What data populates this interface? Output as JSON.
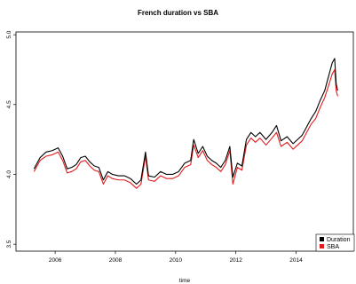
{
  "chart_data": {
    "type": "line",
    "title": "French duration vs SBA",
    "xlabel": "time",
    "ylabel": "",
    "xlim": [
      2004.7,
      2015.9
    ],
    "ylim": [
      3.45,
      5.02
    ],
    "x_ticks": [
      2006,
      2008,
      2010,
      2012,
      2014
    ],
    "y_ticks": [
      3.5,
      4.0,
      4.5,
      5.0
    ],
    "grid": false,
    "legend_position": "bottom-right",
    "series": [
      {
        "name": "Duration",
        "color": "#000000",
        "points": [
          [
            2005.3,
            4.04
          ],
          [
            2005.5,
            4.12
          ],
          [
            2005.7,
            4.16
          ],
          [
            2005.9,
            4.17
          ],
          [
            2006.1,
            4.19
          ],
          [
            2006.25,
            4.13
          ],
          [
            2006.4,
            4.04
          ],
          [
            2006.55,
            4.05
          ],
          [
            2006.7,
            4.07
          ],
          [
            2006.85,
            4.12
          ],
          [
            2007.0,
            4.13
          ],
          [
            2007.15,
            4.09
          ],
          [
            2007.3,
            4.06
          ],
          [
            2007.45,
            4.05
          ],
          [
            2007.6,
            3.96
          ],
          [
            2007.75,
            4.02
          ],
          [
            2007.9,
            4.0
          ],
          [
            2008.1,
            3.99
          ],
          [
            2008.3,
            3.99
          ],
          [
            2008.5,
            3.97
          ],
          [
            2008.7,
            3.93
          ],
          [
            2008.85,
            3.96
          ],
          [
            2009.0,
            4.16
          ],
          [
            2009.1,
            3.99
          ],
          [
            2009.3,
            3.98
          ],
          [
            2009.5,
            4.02
          ],
          [
            2009.7,
            4.0
          ],
          [
            2009.9,
            4.0
          ],
          [
            2010.1,
            4.02
          ],
          [
            2010.3,
            4.08
          ],
          [
            2010.5,
            4.1
          ],
          [
            2010.6,
            4.25
          ],
          [
            2010.75,
            4.15
          ],
          [
            2010.9,
            4.2
          ],
          [
            2011.05,
            4.13
          ],
          [
            2011.2,
            4.1
          ],
          [
            2011.35,
            4.08
          ],
          [
            2011.5,
            4.05
          ],
          [
            2011.65,
            4.1
          ],
          [
            2011.8,
            4.2
          ],
          [
            2011.9,
            3.98
          ],
          [
            2012.05,
            4.08
          ],
          [
            2012.2,
            4.06
          ],
          [
            2012.35,
            4.25
          ],
          [
            2012.5,
            4.3
          ],
          [
            2012.65,
            4.27
          ],
          [
            2012.8,
            4.3
          ],
          [
            2013.0,
            4.25
          ],
          [
            2013.2,
            4.3
          ],
          [
            2013.35,
            4.35
          ],
          [
            2013.5,
            4.24
          ],
          [
            2013.7,
            4.27
          ],
          [
            2013.9,
            4.22
          ],
          [
            2014.05,
            4.25
          ],
          [
            2014.2,
            4.28
          ],
          [
            2014.35,
            4.34
          ],
          [
            2014.5,
            4.4
          ],
          [
            2014.65,
            4.45
          ],
          [
            2014.8,
            4.53
          ],
          [
            2014.95,
            4.6
          ],
          [
            2015.1,
            4.72
          ],
          [
            2015.2,
            4.8
          ],
          [
            2015.28,
            4.83
          ],
          [
            2015.33,
            4.65
          ],
          [
            2015.38,
            4.6
          ]
        ]
      },
      {
        "name": "SBA",
        "color": "#e41a1c",
        "points": [
          [
            2005.3,
            4.02
          ],
          [
            2005.5,
            4.1
          ],
          [
            2005.7,
            4.13
          ],
          [
            2005.9,
            4.14
          ],
          [
            2006.1,
            4.16
          ],
          [
            2006.25,
            4.1
          ],
          [
            2006.4,
            4.01
          ],
          [
            2006.55,
            4.02
          ],
          [
            2006.7,
            4.04
          ],
          [
            2006.85,
            4.09
          ],
          [
            2007.0,
            4.1
          ],
          [
            2007.15,
            4.06
          ],
          [
            2007.3,
            4.03
          ],
          [
            2007.45,
            4.02
          ],
          [
            2007.6,
            3.93
          ],
          [
            2007.75,
            3.99
          ],
          [
            2007.9,
            3.97
          ],
          [
            2008.1,
            3.96
          ],
          [
            2008.3,
            3.96
          ],
          [
            2008.5,
            3.94
          ],
          [
            2008.7,
            3.9
          ],
          [
            2008.85,
            3.93
          ],
          [
            2009.0,
            4.13
          ],
          [
            2009.1,
            3.96
          ],
          [
            2009.3,
            3.95
          ],
          [
            2009.5,
            3.99
          ],
          [
            2009.7,
            3.97
          ],
          [
            2009.9,
            3.97
          ],
          [
            2010.1,
            3.99
          ],
          [
            2010.3,
            4.05
          ],
          [
            2010.5,
            4.07
          ],
          [
            2010.6,
            4.21
          ],
          [
            2010.75,
            4.12
          ],
          [
            2010.9,
            4.17
          ],
          [
            2011.05,
            4.1
          ],
          [
            2011.2,
            4.07
          ],
          [
            2011.35,
            4.05
          ],
          [
            2011.5,
            4.02
          ],
          [
            2011.65,
            4.07
          ],
          [
            2011.8,
            4.17
          ],
          [
            2011.9,
            3.93
          ],
          [
            2012.05,
            4.05
          ],
          [
            2012.2,
            4.03
          ],
          [
            2012.35,
            4.21
          ],
          [
            2012.5,
            4.26
          ],
          [
            2012.65,
            4.23
          ],
          [
            2012.8,
            4.26
          ],
          [
            2013.0,
            4.21
          ],
          [
            2013.2,
            4.26
          ],
          [
            2013.35,
            4.3
          ],
          [
            2013.5,
            4.2
          ],
          [
            2013.7,
            4.23
          ],
          [
            2013.9,
            4.18
          ],
          [
            2014.05,
            4.21
          ],
          [
            2014.2,
            4.24
          ],
          [
            2014.35,
            4.3
          ],
          [
            2014.5,
            4.36
          ],
          [
            2014.65,
            4.4
          ],
          [
            2014.8,
            4.48
          ],
          [
            2014.95,
            4.55
          ],
          [
            2015.1,
            4.65
          ],
          [
            2015.2,
            4.72
          ],
          [
            2015.28,
            4.75
          ],
          [
            2015.33,
            4.6
          ],
          [
            2015.38,
            4.56
          ]
        ]
      }
    ]
  }
}
